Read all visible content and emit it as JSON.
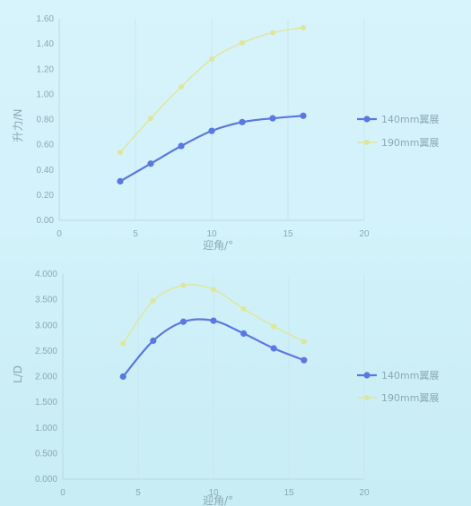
{
  "chart_data": [
    {
      "type": "line",
      "x": [
        4,
        6,
        8,
        10,
        12,
        14,
        16
      ],
      "series": [
        {
          "name": "140mm翼展",
          "values": [
            0.31,
            0.45,
            0.59,
            0.71,
            0.78,
            0.81,
            0.83
          ],
          "color": "#5a78e0"
        },
        {
          "name": "190mm翼展",
          "values": [
            0.54,
            0.81,
            1.06,
            1.28,
            1.41,
            1.49,
            1.53
          ],
          "color": "#dfe69a"
        }
      ],
      "xlim": [
        0,
        20
      ],
      "ylim": [
        0,
        1.6
      ],
      "xticks": [
        "0",
        "5",
        "10",
        "15",
        "20"
      ],
      "yticks": [
        "0.00",
        "0.20",
        "0.40",
        "0.60",
        "0.80",
        "1.00",
        "1.20",
        "1.40",
        "1.60"
      ],
      "xlabel": "迎角/°",
      "ylabel": "升力/N",
      "grid": "vertical",
      "legend": "right"
    },
    {
      "type": "line",
      "x": [
        4,
        6,
        8,
        10,
        12,
        14,
        16
      ],
      "series": [
        {
          "name": "140mm翼展",
          "values": [
            2.0,
            2.7,
            3.07,
            3.09,
            2.84,
            2.55,
            2.32
          ],
          "color": "#5a78e0"
        },
        {
          "name": "190mm翼展",
          "values": [
            2.65,
            3.48,
            3.78,
            3.7,
            3.32,
            2.98,
            2.68
          ],
          "color": "#dfe69a"
        }
      ],
      "xlim": [
        0,
        20
      ],
      "ylim": [
        0,
        4
      ],
      "xticks": [
        "0",
        "5",
        "10",
        "15",
        "20"
      ],
      "yticks": [
        "0.000",
        "0.500",
        "1.000",
        "1.500",
        "2.000",
        "2.500",
        "3.000",
        "3.500",
        "4.000"
      ],
      "xlabel": "迎角/°",
      "ylabel": "L/D",
      "grid": "vertical",
      "legend": "right"
    }
  ]
}
